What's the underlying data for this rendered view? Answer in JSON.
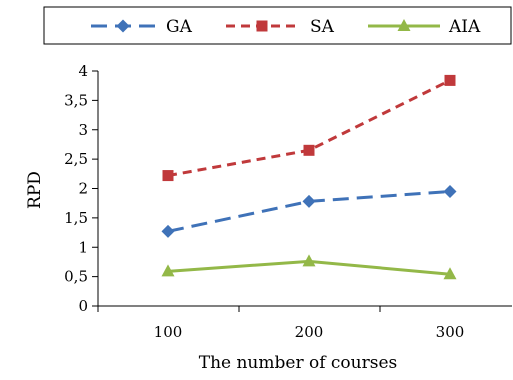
{
  "chart_data": {
    "type": "line",
    "title": "",
    "xlabel": "The number of courses",
    "ylabel": "RPD",
    "categories": [
      "100",
      "200",
      "300"
    ],
    "ylim": [
      0,
      4
    ],
    "y_ticks": [
      "0",
      "0,5",
      "1",
      "1,5",
      "2",
      "2,5",
      "3",
      "3,5",
      "4"
    ],
    "legend_position": "top",
    "grid": false,
    "series": [
      {
        "name": "GA",
        "values": [
          1.27,
          1.78,
          1.95
        ],
        "color": "#3f72b8",
        "line_style": "long-dash",
        "marker": "diamond"
      },
      {
        "name": "SA",
        "values": [
          2.22,
          2.65,
          3.84
        ],
        "color": "#c0393b",
        "line_style": "short-dash",
        "marker": "square"
      },
      {
        "name": "AIA",
        "values": [
          0.59,
          0.76,
          0.54
        ],
        "color": "#93b848",
        "line_style": "solid",
        "marker": "triangle"
      }
    ]
  }
}
